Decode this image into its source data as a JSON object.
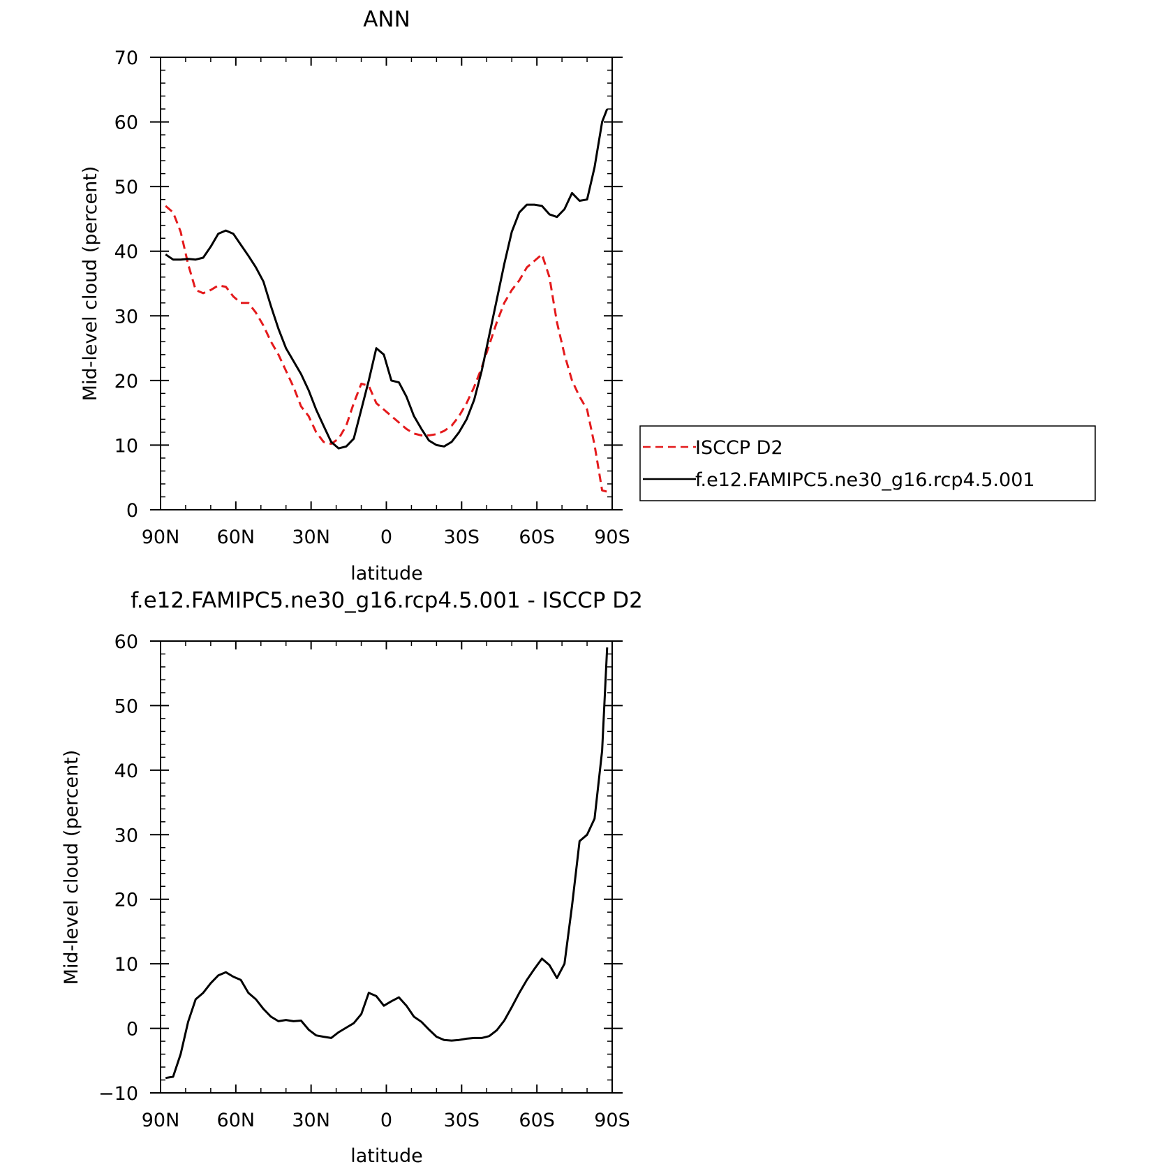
{
  "chart_data": [
    {
      "type": "line",
      "title": "ANN",
      "xlabel": "latitude",
      "ylabel": "Mid-level cloud (percent)",
      "xlim": [
        -90,
        90
      ],
      "ylim": [
        0,
        70
      ],
      "x_ticks": [
        -90,
        -60,
        -30,
        0,
        30,
        60,
        90
      ],
      "x_tick_labels": [
        "90N",
        "60N",
        "30N",
        "0",
        "30S",
        "60S",
        "90S"
      ],
      "y_ticks": [
        0,
        10,
        20,
        30,
        40,
        50,
        60,
        70
      ],
      "y_tick_labels": [
        "0",
        "10",
        "20",
        "30",
        "40",
        "50",
        "60",
        "70"
      ],
      "grid": false,
      "legend": {
        "placement": "right-outside",
        "labels": [
          "ISCCP D2",
          "f.e12.FAMIPC5.ne30_g16.rcp4.5.001"
        ]
      },
      "series": [
        {
          "name": "ISCCP D2",
          "color": "#e41a1c",
          "dash": true,
          "x": [
            -88,
            -85,
            -82,
            -79,
            -76,
            -73,
            -70,
            -67,
            -64,
            -61,
            -58,
            -55,
            -52,
            -49,
            -46,
            -43,
            -40,
            -37,
            -34,
            -31,
            -28,
            -25,
            -22,
            -19,
            -16,
            -13,
            -10,
            -7,
            -4,
            -1,
            2,
            5,
            8,
            11,
            14,
            17,
            20,
            23,
            26,
            29,
            32,
            35,
            38,
            41,
            44,
            47,
            50,
            53,
            56,
            59,
            62,
            65,
            68,
            71,
            74,
            77,
            80,
            83,
            86,
            88
          ],
          "y": [
            47,
            46,
            43,
            38,
            34,
            33.5,
            34,
            34.7,
            34.5,
            33,
            32,
            32,
            30.5,
            28.5,
            26,
            24,
            21.5,
            19,
            16,
            14.5,
            12,
            10.5,
            10.2,
            11,
            13,
            16.5,
            19.5,
            19.2,
            16.5,
            15.5,
            14.5,
            13.5,
            12.5,
            11.8,
            11.5,
            11.5,
            11.7,
            12.2,
            13,
            14.5,
            16.5,
            19,
            22,
            25.5,
            29,
            32,
            34,
            35.5,
            37.5,
            38.5,
            39.5,
            36,
            29,
            24,
            20,
            17.5,
            15.5,
            10,
            3,
            2.8
          ]
        },
        {
          "name": "f.e12.FAMIPC5.ne30_g16.rcp4.5.001",
          "color": "#000000",
          "dash": false,
          "x": [
            -88,
            -85,
            -82,
            -79,
            -76,
            -73,
            -70,
            -67,
            -64,
            -61,
            -58,
            -55,
            -52,
            -49,
            -46,
            -43,
            -40,
            -37,
            -34,
            -31,
            -28,
            -25,
            -22,
            -19,
            -16,
            -13,
            -10,
            -7,
            -4,
            -1,
            2,
            5,
            8,
            11,
            14,
            17,
            20,
            23,
            26,
            29,
            32,
            35,
            38,
            41,
            44,
            47,
            50,
            53,
            56,
            59,
            62,
            65,
            68,
            71,
            74,
            77,
            80,
            83,
            86,
            88
          ],
          "y": [
            39.5,
            38.7,
            38.7,
            38.8,
            38.7,
            39,
            40.7,
            42.7,
            43.2,
            42.7,
            41,
            39.3,
            37.5,
            35.3,
            31.5,
            28,
            25,
            23,
            21,
            18.5,
            15.5,
            13,
            10.5,
            9.5,
            9.8,
            11,
            15.5,
            20,
            25,
            24,
            20,
            19.7,
            17.5,
            14.5,
            12.5,
            10.7,
            10,
            9.8,
            10.5,
            12,
            14,
            17,
            21.5,
            27,
            32.5,
            38,
            43,
            46,
            47.2,
            47.2,
            47,
            45.7,
            45.3,
            46.5,
            49,
            47.8,
            48,
            53,
            60,
            62
          ]
        }
      ]
    },
    {
      "type": "line",
      "title": "f.e12.FAMIPC5.ne30_g16.rcp4.5.001 - ISCCP D2",
      "xlabel": "latitude",
      "ylabel": "Mid-level cloud (percent)",
      "xlim": [
        -90,
        90
      ],
      "ylim": [
        -10,
        60
      ],
      "x_ticks": [
        -90,
        -60,
        -30,
        0,
        30,
        60,
        90
      ],
      "x_tick_labels": [
        "90N",
        "60N",
        "30N",
        "0",
        "30S",
        "60S",
        "90S"
      ],
      "y_ticks": [
        -10,
        0,
        10,
        20,
        30,
        40,
        50,
        60
      ],
      "y_tick_labels": [
        "−10",
        "0",
        "10",
        "20",
        "30",
        "40",
        "50",
        "60"
      ],
      "grid": false,
      "series": [
        {
          "color": "#000000",
          "dash": false,
          "x": [
            -88,
            -85,
            -82,
            -79,
            -76,
            -73,
            -70,
            -67,
            -64,
            -61,
            -58,
            -55,
            -52,
            -49,
            -46,
            -43,
            -40,
            -37,
            -34,
            -31,
            -28,
            -25,
            -22,
            -19,
            -16,
            -13,
            -10,
            -7,
            -4,
            -1,
            2,
            5,
            8,
            11,
            14,
            17,
            20,
            23,
            26,
            29,
            32,
            35,
            38,
            41,
            44,
            47,
            50,
            53,
            56,
            59,
            62,
            65,
            68,
            71,
            74,
            77,
            80,
            83,
            86,
            88
          ],
          "y": [
            -7.7,
            -7.5,
            -4,
            1,
            4.5,
            5.5,
            7,
            8.2,
            8.7,
            8,
            7.5,
            5.5,
            4.5,
            3,
            1.8,
            1.1,
            1.3,
            1.1,
            1.2,
            -0.2,
            -1.1,
            -1.3,
            -1.5,
            -0.6,
            0.1,
            0.8,
            2.2,
            5.5,
            5,
            3.5,
            4.2,
            4.8,
            3.5,
            1.8,
            1,
            -0.2,
            -1.3,
            -1.8,
            -1.9,
            -1.8,
            -1.6,
            -1.5,
            -1.5,
            -1.2,
            -0.3,
            1.2,
            3.3,
            5.5,
            7.5,
            9.2,
            10.8,
            9.8,
            7.8,
            10,
            19,
            29,
            30,
            32.5,
            43,
            59
          ]
        }
      ]
    }
  ]
}
